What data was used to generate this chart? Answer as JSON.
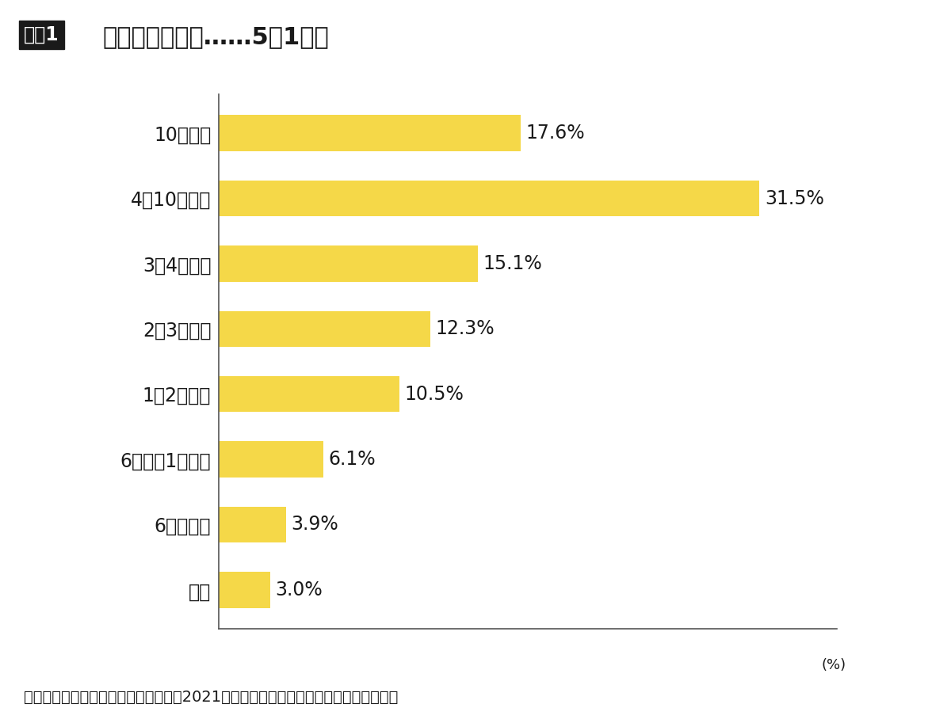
{
  "title_box_text": "図表1",
  "title_main_text": "介護期間の平均……5年1カ月",
  "categories": [
    "10年以上",
    "4～10年未満",
    "3～4年未満",
    "2～3年未満",
    "1～2年未満",
    "6カ月～1年未満",
    "6カ月未満",
    "不明"
  ],
  "values": [
    17.6,
    31.5,
    15.1,
    12.3,
    10.5,
    6.1,
    3.9,
    3.0
  ],
  "bar_color": "#F5D848",
  "background_color": "#ffffff",
  "footnote": "公益財団法人生命保険文化センター「2021年度生命保険に関する全国実態調査」より",
  "xlim": [
    0,
    36
  ],
  "title_box_bg": "#1a1a1a",
  "title_box_text_color": "#ffffff",
  "title_fontsize": 22,
  "label_fontsize": 17,
  "value_fontsize": 17,
  "footnote_fontsize": 14,
  "xlabel_fontsize": 13
}
